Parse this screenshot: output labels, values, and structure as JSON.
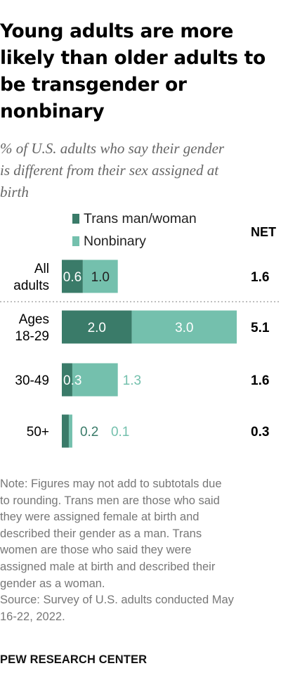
{
  "title": "Young adults are more likely than older adults to be transgender or nonbinary",
  "subtitle_lines": [
    "% of U.S. adults who say their gender",
    "is different from their sex assigned at",
    "birth"
  ],
  "net_header": "NET",
  "note_lines": [
    "Note: Figures may not add to subtotals due",
    "to rounding. Trans men are those who said",
    "they were assigned female at birth and",
    "described their gender as a man. Trans",
    "women are those who said they were",
    "assigned male at birth and described their",
    "gender as a woman."
  ],
  "source_lines": [
    "Source: Survey of U.S. adults conducted May",
    "16-22, 2022."
  ],
  "brand": "PEW RESEARCH CENTER",
  "colors": {
    "trans": "#3a7b69",
    "nonbinary": "#74c0ad",
    "divider": "#aaaaaa",
    "text": "#000000"
  },
  "chart_data": {
    "type": "bar",
    "orientation": "horizontal",
    "stacked": true,
    "categories": [
      [
        "All",
        "adults"
      ],
      [
        "Ages",
        "18-29"
      ],
      [
        "30-49"
      ],
      [
        "50+"
      ]
    ],
    "series": [
      {
        "name": "Trans man/woman",
        "values": [
          0.6,
          2.0,
          0.3,
          0.2
        ]
      },
      {
        "name": "Nonbinary",
        "values": [
          1.0,
          3.0,
          1.3,
          0.1
        ]
      }
    ],
    "value_labels": [
      [
        "0.6",
        "2.0",
        "0.3",
        "0.2"
      ],
      [
        "1.0",
        "3.0",
        "1.3",
        "0.1"
      ]
    ],
    "net": [
      "1.6",
      "5.1",
      "1.6",
      "0.3"
    ],
    "xlim": [
      0,
      5.5
    ],
    "title": "",
    "xlabel": "",
    "ylabel": "",
    "grid": false,
    "legend_position": "top"
  }
}
